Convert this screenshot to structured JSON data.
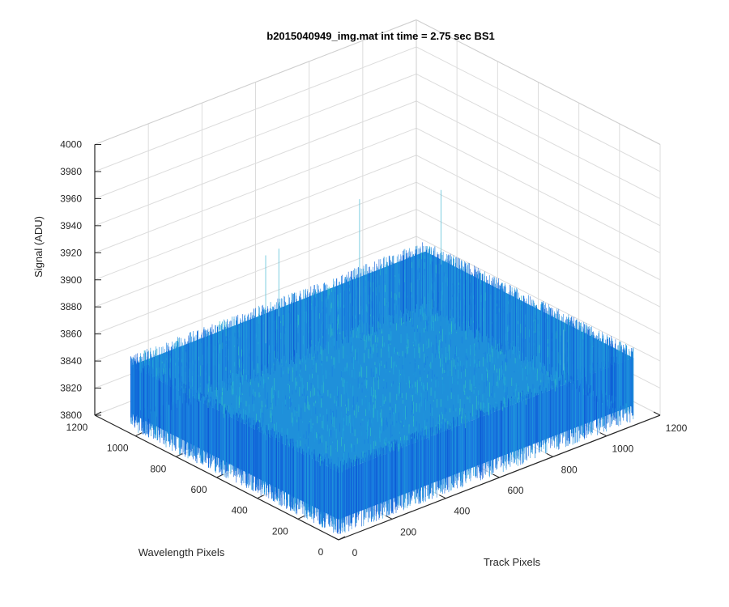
{
  "chart_data": {
    "type": "surface",
    "title": "b2015040949_img.mat int time = 2.75 sec   BS1",
    "xlabel": "Track Pixels",
    "ylabel": "Wavelength Pixels",
    "zlabel": "Signal (ADU)",
    "xlim": [
      0,
      1200
    ],
    "ylim": [
      0,
      1200
    ],
    "zlim": [
      3800,
      4000
    ],
    "xticks": [
      0,
      200,
      400,
      600,
      800,
      1000,
      1200
    ],
    "yticks": [
      0,
      200,
      400,
      600,
      800,
      1000,
      1200
    ],
    "zticks": [
      3800,
      3820,
      3840,
      3860,
      3880,
      3900,
      3920,
      3940,
      3960,
      3980,
      4000
    ],
    "grid": true,
    "surface": {
      "x_range": [
        0,
        1100
      ],
      "y_range": [
        0,
        1024
      ],
      "mean_signal": 3832,
      "noise_min": 3815,
      "noise_max": 3850,
      "peak_max": 3935,
      "colormap": "parula",
      "colors": [
        "#0e5cd6",
        "#1a7fe0",
        "#1f96db",
        "#23aad6",
        "#30bfc2"
      ]
    }
  }
}
